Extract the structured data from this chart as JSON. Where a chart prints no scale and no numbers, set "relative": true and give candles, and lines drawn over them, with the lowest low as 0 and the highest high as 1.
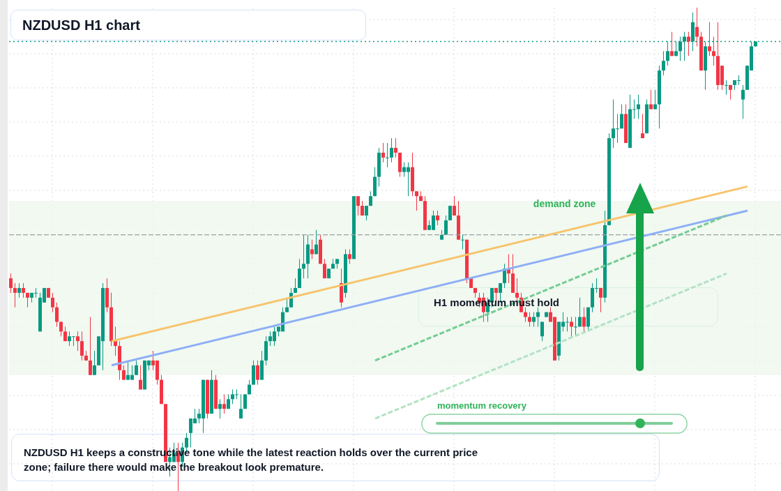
{
  "chart_data": {
    "type": "candlestick",
    "title": "NZDUSD H1 chart",
    "relative": true,
    "grid": true,
    "categories": [
      null,
      null,
      null,
      null,
      null,
      null,
      null,
      null,
      null,
      null,
      null,
      null,
      null,
      null,
      null,
      null,
      null,
      null,
      null,
      null,
      null,
      null,
      null,
      null,
      null,
      null,
      null,
      null,
      null,
      null,
      null,
      null,
      null,
      null,
      null,
      null,
      null,
      null,
      null,
      null,
      null,
      null,
      null,
      null,
      null,
      null,
      null,
      null,
      null,
      null,
      null,
      null,
      null,
      null,
      null,
      null,
      null,
      null,
      null,
      null,
      null,
      null,
      null,
      null,
      null,
      null,
      null,
      null,
      null,
      null,
      null,
      null,
      null,
      null,
      null,
      null,
      null,
      null,
      null,
      null,
      null,
      null,
      null,
      null,
      null,
      null,
      null,
      null,
      null,
      null,
      null,
      null,
      null,
      null,
      null,
      null,
      null,
      null,
      null,
      null,
      null,
      null,
      null,
      null,
      null,
      null,
      null,
      null,
      null,
      null,
      null,
      null,
      null,
      null,
      null,
      null,
      null,
      null,
      null,
      null,
      null,
      null,
      null,
      null,
      null,
      null,
      null,
      null,
      null,
      null,
      null,
      null,
      null,
      null,
      null,
      null,
      null,
      null,
      null,
      null,
      null,
      null,
      null,
      null,
      null,
      null,
      null,
      null,
      null,
      null,
      null,
      null,
      null,
      null,
      null,
      null,
      null,
      null,
      null,
      null,
      null,
      null,
      null,
      null,
      null,
      null,
      null,
      null,
      null,
      null,
      null,
      null,
      null,
      null,
      null,
      null,
      null,
      null,
      null
    ],
    "ohlc": [
      [
        0.44,
        0.45,
        0.41,
        0.42
      ],
      [
        0.42,
        0.43,
        0.38,
        0.41
      ],
      [
        0.41,
        0.43,
        0.4,
        0.42
      ],
      [
        0.42,
        0.43,
        0.4,
        0.41
      ],
      [
        0.41,
        0.41,
        0.38,
        0.4
      ],
      [
        0.4,
        0.41,
        0.39,
        0.41
      ],
      [
        0.41,
        0.42,
        0.4,
        0.41
      ],
      [
        0.33,
        0.41,
        0.33,
        0.4
      ],
      [
        0.39,
        0.42,
        0.39,
        0.42
      ],
      [
        0.42,
        0.42,
        0.4,
        0.4
      ],
      [
        0.4,
        0.41,
        0.37,
        0.38
      ],
      [
        0.38,
        0.39,
        0.34,
        0.35
      ],
      [
        0.35,
        0.35,
        0.32,
        0.33
      ],
      [
        0.33,
        0.34,
        0.31,
        0.31
      ],
      [
        0.31,
        0.33,
        0.3,
        0.32
      ],
      [
        0.32,
        0.32,
        0.3,
        0.32
      ],
      [
        0.32,
        0.33,
        0.29,
        0.31
      ],
      [
        0.31,
        0.33,
        0.27,
        0.28
      ],
      [
        0.28,
        0.29,
        0.27,
        0.27
      ],
      [
        0.27,
        0.36,
        0.24,
        0.24
      ],
      [
        0.24,
        0.29,
        0.24,
        0.26
      ],
      [
        0.26,
        0.32,
        0.26,
        0.32
      ],
      [
        0.31,
        0.43,
        0.25,
        0.42
      ],
      [
        0.42,
        0.44,
        0.37,
        0.38
      ],
      [
        0.38,
        0.41,
        0.3,
        0.31
      ],
      [
        0.31,
        0.34,
        0.28,
        0.3
      ],
      [
        0.3,
        0.31,
        0.23,
        0.25
      ],
      [
        0.25,
        0.26,
        0.23,
        0.23
      ],
      [
        0.23,
        0.27,
        0.23,
        0.24
      ],
      [
        0.23,
        0.26,
        0.23,
        0.24
      ],
      [
        0.24,
        0.27,
        0.24,
        0.26
      ],
      [
        0.23,
        0.26,
        0.21,
        0.21
      ],
      [
        0.21,
        0.27,
        0.21,
        0.27
      ],
      [
        0.26,
        0.27,
        0.25,
        0.27
      ],
      [
        0.27,
        0.29,
        0.25,
        0.26
      ],
      [
        0.27,
        0.27,
        0.22,
        0.23
      ],
      [
        0.23,
        0.24,
        0.18,
        0.18
      ],
      [
        0.18,
        0.18,
        0.06,
        0.06
      ],
      [
        0.06,
        0.09,
        0.03,
        0.07
      ],
      [
        0.06,
        0.1,
        0.06,
        0.08
      ],
      [
        0.08,
        0.1,
        0,
        0.06
      ],
      [
        0.06,
        0.1,
        0.05,
        0.09
      ],
      [
        0.09,
        0.12,
        0.08,
        0.11
      ],
      [
        0.12,
        0.15,
        0.09,
        0.15
      ],
      [
        0.14,
        0.17,
        0.14,
        0.15
      ],
      [
        0.15,
        0.17,
        0.14,
        0.16
      ],
      [
        0.15,
        0.23,
        0.12,
        0.23
      ],
      [
        0.23,
        0.23,
        0.15,
        0.16
      ],
      [
        0.16,
        0.25,
        0.16,
        0.23
      ],
      [
        0.23,
        0.24,
        0.17,
        0.17
      ],
      [
        0.17,
        0.19,
        0.15,
        0.18
      ],
      [
        0.18,
        0.2,
        0.16,
        0.17
      ],
      [
        0.17,
        0.2,
        0.17,
        0.19
      ],
      [
        0.19,
        0.21,
        0.18,
        0.2
      ],
      [
        0.2,
        0.21,
        0.19,
        0.2
      ],
      [
        0.15,
        0.2,
        0.15,
        0.17
      ],
      [
        0.17,
        0.2,
        0.17,
        0.2
      ],
      [
        0.2,
        0.23,
        0.2,
        0.22
      ],
      [
        0.22,
        0.27,
        0.22,
        0.26
      ],
      [
        0.26,
        0.27,
        0.22,
        0.23
      ],
      [
        0.23,
        0.29,
        0.23,
        0.27
      ],
      [
        0.27,
        0.32,
        0.26,
        0.31
      ],
      [
        0.31,
        0.33,
        0.3,
        0.32
      ],
      [
        0.31,
        0.34,
        0.3,
        0.33
      ],
      [
        0.33,
        0.34,
        0.32,
        0.34
      ],
      [
        0.33,
        0.38,
        0.33,
        0.37
      ],
      [
        0.37,
        0.4,
        0.37,
        0.38
      ],
      [
        0.38,
        0.42,
        0.38,
        0.41
      ],
      [
        0.41,
        0.44,
        0.41,
        0.42
      ],
      [
        0.42,
        0.48,
        0.42,
        0.46
      ],
      [
        0.46,
        0.53,
        0.44,
        0.47
      ],
      [
        0.47,
        0.53,
        0.44,
        0.51
      ],
      [
        0.5,
        0.52,
        0.48,
        0.49
      ],
      [
        0.49,
        0.54,
        0.49,
        0.51
      ],
      [
        0.52,
        0.53,
        0.47,
        0.47
      ],
      [
        0.47,
        0.48,
        0.44,
        0.44
      ],
      [
        0.44,
        0.46,
        0.44,
        0.46
      ],
      [
        0.46,
        0.48,
        0.46,
        0.47
      ],
      [
        0.47,
        0.48,
        0.46,
        0.48
      ],
      [
        0.43,
        0.46,
        0.38,
        0.39
      ],
      [
        0.41,
        0.5,
        0.4,
        0.49
      ],
      [
        0.49,
        0.5,
        0.47,
        0.48
      ],
      [
        0.48,
        0.61,
        0.48,
        0.61
      ],
      [
        0.61,
        0.61,
        0.57,
        0.59
      ],
      [
        0.59,
        0.6,
        0.57,
        0.57
      ],
      [
        0.57,
        0.59,
        0.56,
        0.59
      ],
      [
        0.59,
        0.62,
        0.59,
        0.61
      ],
      [
        0.61,
        0.67,
        0.61,
        0.65
      ],
      [
        0.65,
        0.71,
        0.63,
        0.7
      ],
      [
        0.7,
        0.72,
        0.68,
        0.69
      ],
      [
        0.69,
        0.72,
        0.67,
        0.69
      ],
      [
        0.69,
        0.73,
        0.68,
        0.71
      ],
      [
        0.71,
        0.73,
        0.69,
        0.7
      ],
      [
        0.7,
        0.7,
        0.65,
        0.66
      ],
      [
        0.66,
        0.68,
        0.65,
        0.67
      ],
      [
        0.66,
        0.68,
        0.61,
        0.67
      ],
      [
        0.67,
        0.7,
        0.61,
        0.62
      ],
      [
        0.62,
        0.62,
        0.58,
        0.61
      ],
      [
        0.61,
        0.62,
        0.6,
        0.6
      ],
      [
        0.6,
        0.61,
        0.54,
        0.54
      ],
      [
        0.54,
        0.56,
        0.54,
        0.55
      ],
      [
        0.54,
        0.58,
        0.54,
        0.57
      ],
      [
        0.57,
        0.58,
        0.55,
        0.56
      ],
      [
        0.52,
        0.54,
        0.52,
        0.53
      ],
      [
        0.53,
        0.57,
        0.53,
        0.56
      ],
      [
        0.56,
        0.59,
        0.56,
        0.59
      ],
      [
        0.59,
        0.61,
        0.57,
        0.57
      ],
      [
        0.57,
        0.6,
        0.52,
        0.52
      ],
      [
        0.52,
        0.53,
        0.5,
        0.52
      ],
      [
        0.52,
        0.52,
        0.43,
        0.44
      ],
      [
        0.44,
        0.44,
        0.42,
        0.42
      ],
      [
        0.42,
        0.42,
        0.4,
        0.41
      ],
      [
        0.4,
        0.41,
        0.38,
        0.39
      ],
      [
        0.4,
        0.41,
        0.35,
        0.37
      ],
      [
        0.37,
        0.4,
        0.35,
        0.39
      ],
      [
        0.39,
        0.42,
        0.38,
        0.42
      ],
      [
        0.42,
        0.42,
        0.39,
        0.41
      ],
      [
        0.41,
        0.43,
        0.39,
        0.43
      ],
      [
        0.43,
        0.47,
        0.42,
        0.46
      ],
      [
        0.46,
        0.49,
        0.43,
        0.45
      ],
      [
        0.45,
        0.49,
        0.41,
        0.41
      ],
      [
        0.41,
        0.44,
        0.39,
        0.4
      ],
      [
        0.4,
        0.41,
        0.37,
        0.37
      ],
      [
        0.37,
        0.38,
        0.35,
        0.36
      ],
      [
        0.36,
        0.37,
        0.34,
        0.35
      ],
      [
        0.35,
        0.37,
        0.34,
        0.36
      ],
      [
        0.36,
        0.38,
        0.34,
        0.37
      ],
      [
        0.32,
        0.35,
        0.31,
        0.35
      ],
      [
        0.36,
        0.37,
        0.36,
        0.37
      ],
      [
        0.37,
        0.38,
        0.35,
        0.35
      ],
      [
        0.36,
        0.36,
        0.27,
        0.27
      ],
      [
        0.28,
        0.35,
        0.27,
        0.35
      ],
      [
        0.34,
        0.37,
        0.33,
        0.35
      ],
      [
        0.35,
        0.36,
        0.33,
        0.35
      ],
      [
        0.35,
        0.36,
        0.32,
        0.34
      ],
      [
        0.34,
        0.36,
        0.32,
        0.34
      ],
      [
        0.34,
        0.4,
        0.34,
        0.36
      ],
      [
        0.36,
        0.38,
        0.33,
        0.34
      ],
      [
        0.34,
        0.38,
        0.33,
        0.38
      ],
      [
        0.38,
        0.43,
        0.37,
        0.42
      ],
      [
        0.42,
        0.44,
        0.41,
        0.42
      ],
      [
        0.42,
        0.42,
        0.37,
        0.4
      ],
      [
        0.4,
        0.58,
        0.39,
        0.55
      ],
      [
        0.55,
        0.74,
        0.55,
        0.73
      ],
      [
        0.73,
        0.81,
        0.71,
        0.75
      ],
      [
        0.75,
        0.78,
        0.72,
        0.75
      ],
      [
        0.75,
        0.8,
        0.75,
        0.78
      ],
      [
        0.78,
        0.8,
        0.72,
        0.72
      ],
      [
        0.71,
        0.82,
        0.71,
        0.79
      ],
      [
        0.79,
        0.81,
        0.77,
        0.79
      ],
      [
        0.79,
        0.82,
        0.77,
        0.8
      ],
      [
        0.74,
        0.78,
        0.73,
        0.73
      ],
      [
        0.74,
        0.81,
        0.74,
        0.8
      ],
      [
        0.8,
        0.83,
        0.79,
        0.79
      ],
      [
        0.79,
        0.83,
        0.79,
        0.8
      ],
      [
        0.8,
        0.88,
        0.75,
        0.87
      ],
      [
        0.87,
        0.91,
        0.86,
        0.89
      ],
      [
        0.89,
        0.93,
        0.88,
        0.91
      ],
      [
        0.91,
        0.95,
        0.9,
        0.9
      ],
      [
        0.9,
        0.93,
        0.9,
        0.91
      ],
      [
        0.91,
        0.94,
        0.89,
        0.93
      ],
      [
        0.93,
        0.95,
        0.89,
        0.94
      ],
      [
        0.94,
        0.95,
        0.9,
        0.93
      ],
      [
        0.93,
        0.99,
        0.91,
        0.97
      ],
      [
        0.96,
        1,
        0.92,
        0.94
      ],
      [
        0.94,
        0.95,
        0.87,
        0.87
      ],
      [
        0.87,
        0.93,
        0.83,
        0.92
      ],
      [
        0.92,
        0.97,
        0.9,
        0.91
      ],
      [
        0.91,
        0.94,
        0.88,
        0.9
      ],
      [
        0.9,
        0.97,
        0.83,
        0.84
      ],
      [
        0.88,
        0.88,
        0.83,
        0.84
      ],
      [
        0.84,
        0.85,
        0.82,
        0.84
      ],
      [
        0.84,
        0.84,
        0.81,
        0.83
      ],
      [
        0.84,
        0.85,
        0.83,
        0.85
      ],
      [
        0.85,
        0.86,
        0.84,
        0.85
      ],
      [
        0.81,
        0.84,
        0.77,
        0.83
      ],
      [
        0.83,
        0.88,
        0.83,
        0.88
      ],
      [
        0.87,
        0.93,
        0.87,
        0.92
      ],
      [
        0.92,
        0.93,
        0.92,
        0.93
      ]
    ],
    "series": [
      {
        "type": "line",
        "color": "#f7c46c",
        "line_style": "solid",
        "values": [
          null,
          null,
          null,
          null,
          null,
          null,
          null,
          null,
          null,
          null,
          null,
          null,
          null,
          null,
          null,
          null,
          null,
          null,
          null,
          null,
          null,
          null,
          null,
          null,
          0.31,
          null,
          null,
          null,
          null,
          null,
          null,
          null,
          null,
          null,
          null,
          null,
          null,
          null,
          null,
          null,
          null,
          null,
          null,
          null,
          null,
          null,
          null,
          null,
          null,
          null,
          null,
          null,
          null,
          null,
          null,
          null,
          null,
          null,
          null,
          null,
          null,
          null,
          null,
          null,
          null,
          null,
          null,
          null,
          null,
          null,
          null,
          null,
          null,
          null,
          null,
          null,
          null,
          null,
          null,
          null,
          null,
          null,
          null,
          null,
          null,
          null,
          null,
          null,
          null,
          null,
          null,
          null,
          null,
          null,
          null,
          null,
          null,
          null,
          null,
          null,
          null,
          null,
          null,
          null,
          null,
          null,
          null,
          null,
          null,
          null,
          null,
          null,
          null,
          null,
          null,
          null,
          null,
          null,
          null,
          null,
          null,
          null,
          null,
          null,
          null,
          null,
          null,
          null,
          null,
          null,
          null,
          null,
          null,
          null,
          null,
          null,
          null,
          null,
          null,
          null,
          null,
          null,
          null,
          null,
          null,
          null,
          null,
          null,
          null,
          null,
          null,
          null,
          null,
          null,
          null,
          null,
          null,
          null,
          null,
          null,
          null,
          null,
          null,
          null,
          null,
          null,
          null,
          null,
          null,
          null,
          null,
          null,
          null,
          null,
          null,
          null,
          0.63,
          null,
          null
        ]
      },
      {
        "type": "line",
        "color": "#8eaef5",
        "line_style": "solid",
        "values": [
          null,
          null,
          null,
          null,
          null,
          null,
          null,
          null,
          null,
          null,
          null,
          null,
          null,
          null,
          null,
          null,
          null,
          null,
          null,
          null,
          null,
          null,
          null,
          null,
          0.26,
          null,
          null,
          null,
          null,
          null,
          null,
          null,
          null,
          null,
          null,
          null,
          null,
          null,
          null,
          null,
          null,
          null,
          null,
          null,
          null,
          null,
          null,
          null,
          null,
          null,
          null,
          null,
          null,
          null,
          null,
          null,
          null,
          null,
          null,
          null,
          null,
          null,
          null,
          null,
          null,
          null,
          null,
          null,
          null,
          null,
          null,
          null,
          null,
          null,
          null,
          null,
          null,
          null,
          null,
          null,
          null,
          null,
          null,
          null,
          null,
          null,
          null,
          null,
          null,
          null,
          null,
          null,
          null,
          null,
          null,
          null,
          null,
          null,
          null,
          null,
          null,
          null,
          null,
          null,
          null,
          null,
          null,
          null,
          null,
          null,
          null,
          null,
          null,
          null,
          null,
          null,
          null,
          null,
          null,
          null,
          null,
          null,
          null,
          null,
          null,
          null,
          null,
          null,
          null,
          null,
          null,
          null,
          null,
          null,
          null,
          null,
          null,
          null,
          null,
          null,
          null,
          null,
          null,
          null,
          null,
          null,
          null,
          null,
          null,
          null,
          null,
          null,
          null,
          null,
          null,
          null,
          null,
          null,
          null,
          null,
          null,
          null,
          null,
          null,
          null,
          null,
          null,
          null,
          null,
          null,
          null,
          null,
          null,
          null,
          null,
          null,
          0.58,
          null,
          null
        ]
      },
      {
        "type": "line",
        "color": "#74cc92",
        "line_style": "dashed",
        "values": [
          null,
          null,
          null,
          null,
          null,
          null,
          null,
          null,
          null,
          null,
          null,
          null,
          null,
          null,
          null,
          null,
          null,
          null,
          null,
          null,
          null,
          null,
          null,
          null,
          null,
          null,
          null,
          null,
          null,
          null,
          null,
          null,
          null,
          null,
          null,
          null,
          null,
          null,
          null,
          null,
          null,
          null,
          null,
          null,
          null,
          null,
          null,
          null,
          null,
          null,
          null,
          null,
          null,
          null,
          null,
          null,
          null,
          null,
          null,
          null,
          null,
          null,
          null,
          null,
          null,
          null,
          null,
          null,
          null,
          null,
          null,
          null,
          null,
          null,
          null,
          null,
          null,
          null,
          null,
          null,
          null,
          null,
          null,
          null,
          null,
          null,
          null,
          0.27,
          null,
          null,
          null,
          null,
          null,
          null,
          null,
          null,
          null,
          null,
          null,
          null,
          null,
          null,
          null,
          null,
          null,
          null,
          null,
          null,
          null,
          null,
          null,
          null,
          null,
          null,
          null,
          null,
          null,
          null,
          null,
          null,
          null,
          null,
          null,
          null,
          null,
          null,
          null,
          null,
          null,
          null,
          null,
          null,
          null,
          null,
          null,
          null,
          null,
          null,
          null,
          null,
          null,
          null,
          null,
          null,
          null,
          null,
          null,
          null,
          null,
          null,
          null,
          null,
          null,
          null,
          null,
          null,
          null,
          null,
          null,
          null,
          null,
          null,
          null,
          null,
          null,
          null,
          null,
          null,
          null,
          null,
          null,
          0.57,
          null,
          null,
          null,
          null,
          null,
          null,
          null
        ]
      },
      {
        "type": "line",
        "color": "#b3e2c3",
        "line_style": "dashed",
        "values": [
          null,
          null,
          null,
          null,
          null,
          null,
          null,
          null,
          null,
          null,
          null,
          null,
          null,
          null,
          null,
          null,
          null,
          null,
          null,
          null,
          null,
          null,
          null,
          null,
          null,
          null,
          null,
          null,
          null,
          null,
          null,
          null,
          null,
          null,
          null,
          null,
          null,
          null,
          null,
          null,
          null,
          null,
          null,
          null,
          null,
          null,
          null,
          null,
          null,
          null,
          null,
          null,
          null,
          null,
          null,
          null,
          null,
          null,
          null,
          null,
          null,
          null,
          null,
          null,
          null,
          null,
          null,
          null,
          null,
          null,
          null,
          null,
          null,
          null,
          null,
          null,
          null,
          null,
          null,
          null,
          null,
          null,
          null,
          null,
          null,
          null,
          null,
          0.15,
          null,
          null,
          null,
          null,
          null,
          null,
          null,
          null,
          null,
          null,
          null,
          null,
          null,
          null,
          null,
          null,
          null,
          null,
          null,
          null,
          null,
          null,
          null,
          null,
          null,
          null,
          null,
          null,
          null,
          null,
          null,
          null,
          null,
          null,
          null,
          null,
          null,
          null,
          null,
          null,
          null,
          null,
          null,
          null,
          null,
          null,
          null,
          null,
          null,
          null,
          null,
          null,
          null,
          null,
          null,
          null,
          null,
          null,
          null,
          null,
          null,
          null,
          null,
          null,
          null,
          null,
          null,
          null,
          null,
          null,
          null,
          null,
          null,
          null,
          null,
          null,
          null,
          null,
          null,
          null,
          null,
          null,
          null,
          0.45,
          null,
          null,
          null,
          null,
          null,
          null,
          null
        ]
      }
    ],
    "ref_lines": [
      {
        "axis": "y",
        "value": 0.93,
        "color": "#089981",
        "line_style": "dotted"
      },
      {
        "axis": "y",
        "value": 0.53,
        "color": "#9aa0a6",
        "line_style": "dashed"
      }
    ],
    "bands": [
      {
        "axis": "y",
        "from": 0.24,
        "to": 0.6,
        "label": "demand zone",
        "color": "#eef8ee"
      }
    ],
    "annotations": [
      "H1 momentum must hold",
      "momentum recovery",
      "NZDUSD H1 keeps a constructive tone while the latest reaction holds over the current price zone; failure there would make the breakout look premature."
    ]
  }
}
